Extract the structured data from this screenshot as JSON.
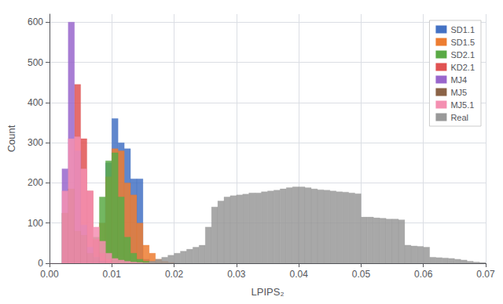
{
  "chart_data": {
    "type": "histogram",
    "xlabel": "LPIPS₂",
    "ylabel": "Count",
    "xlim": [
      0.0,
      0.07
    ],
    "ylim": [
      0,
      620
    ],
    "xticks": [
      {
        "value": 0.0,
        "label": "0.00"
      },
      0.01,
      0.02,
      0.03,
      0.04,
      0.05,
      0.06,
      0.07
    ],
    "yticks": [
      0,
      100,
      200,
      300,
      400,
      500,
      600
    ],
    "grid": true,
    "legend": "upper right",
    "series": [
      {
        "name": "SD1.1",
        "color": "#4472c4",
        "bins": [
          0.009,
          0.01,
          0.011,
          0.012,
          0.013,
          0.014,
          0.015,
          0.016,
          0.017,
          0.018,
          0.019,
          0.02,
          0.021
        ],
        "values": [
          250,
          360,
          300,
          285,
          210,
          210,
          10,
          5,
          3,
          1,
          1,
          0
        ]
      },
      {
        "name": "SD1.5",
        "color": "#ed7d31",
        "bins": [
          0.008,
          0.009,
          0.01,
          0.011,
          0.012,
          0.013,
          0.014,
          0.015,
          0.016,
          0.017,
          0.018,
          0.019,
          0.02
        ],
        "values": [
          100,
          215,
          285,
          280,
          200,
          170,
          100,
          45,
          25,
          10,
          5,
          2
        ]
      },
      {
        "name": "SD2.1",
        "color": "#5aaa45",
        "bins": [
          0.007,
          0.008,
          0.009,
          0.01,
          0.011,
          0.012,
          0.013,
          0.014,
          0.015,
          0.016
        ],
        "values": [
          65,
          165,
          255,
          275,
          165,
          65,
          25,
          10,
          5
        ]
      },
      {
        "name": "KD2.1",
        "color": "#e05252",
        "bins": [
          0.003,
          0.004,
          0.005,
          0.006,
          0.007,
          0.008,
          0.009,
          0.01
        ],
        "values": [
          120,
          445,
          310,
          180,
          60,
          25,
          10
        ]
      },
      {
        "name": "MJ4",
        "color": "#9966cc",
        "bins": [
          0.002,
          0.003,
          0.004,
          0.005,
          0.006,
          0.007,
          0.008,
          0.009
        ],
        "values": [
          235,
          600,
          280,
          95,
          40,
          15,
          5
        ]
      },
      {
        "name": "MJ5",
        "color": "#8b6347",
        "bins": [
          0.002,
          0.003,
          0.004,
          0.005,
          0.006,
          0.007,
          0.008,
          0.009,
          0.01,
          0.011
        ],
        "values": [
          125,
          185,
          80,
          70,
          25,
          15,
          5,
          3,
          1
        ]
      },
      {
        "name": "MJ5.1",
        "color": "#f48fb1",
        "bins": [
          0.0,
          0.001,
          0.002,
          0.003,
          0.004,
          0.005,
          0.006,
          0.007,
          0.008,
          0.009,
          0.01,
          0.011,
          0.012,
          0.013,
          0.014,
          0.015,
          0.016,
          0.017
        ],
        "values": [
          0,
          0,
          180,
          310,
          315,
          235,
          180,
          90,
          55,
          25,
          12,
          8,
          5,
          3,
          2,
          1,
          1
        ]
      },
      {
        "name": "Real",
        "color": "#999999",
        "bins": [
          0.015,
          0.016,
          0.017,
          0.018,
          0.019,
          0.02,
          0.021,
          0.022,
          0.023,
          0.024,
          0.025,
          0.026,
          0.027,
          0.028,
          0.029,
          0.03,
          0.031,
          0.032,
          0.033,
          0.034,
          0.035,
          0.036,
          0.037,
          0.038,
          0.039,
          0.04,
          0.041,
          0.042,
          0.043,
          0.044,
          0.045,
          0.046,
          0.047,
          0.048,
          0.049,
          0.05,
          0.051,
          0.052,
          0.053,
          0.054,
          0.055,
          0.056,
          0.057,
          0.058,
          0.059,
          0.06,
          0.061,
          0.062,
          0.063,
          0.064,
          0.065,
          0.066,
          0.067,
          0.068,
          0.069,
          0.07
        ],
        "values": [
          0,
          5,
          10,
          15,
          20,
          25,
          30,
          35,
          40,
          45,
          90,
          140,
          155,
          165,
          168,
          170,
          172,
          175,
          175,
          178,
          180,
          182,
          185,
          188,
          190,
          190,
          188,
          185,
          183,
          182,
          180,
          178,
          177,
          175,
          173,
          115,
          115,
          113,
          112,
          110,
          110,
          108,
          45,
          43,
          42,
          40,
          15,
          14,
          13,
          12,
          10,
          8,
          5,
          3,
          2
        ]
      }
    ]
  }
}
